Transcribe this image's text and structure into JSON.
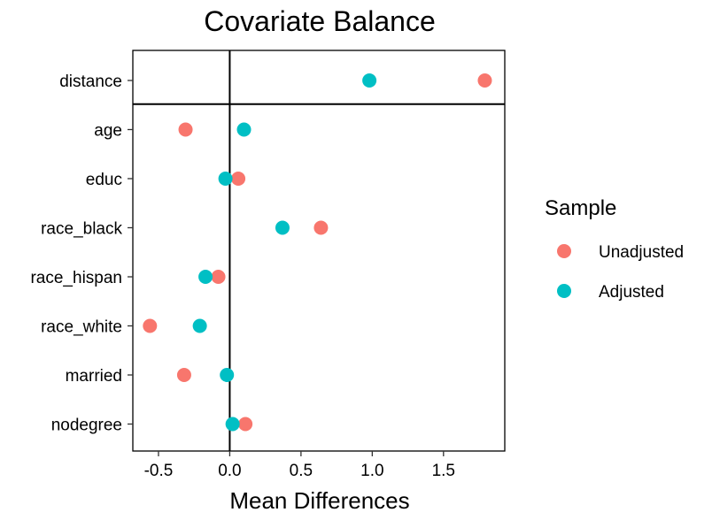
{
  "chart_data": {
    "type": "scatter",
    "title": "Covariate Balance",
    "xlabel": "Mean Differences",
    "ylabel": "",
    "xlim": [
      -0.68,
      1.93
    ],
    "x_ticks": [
      -0.5,
      0.0,
      0.5,
      1.0,
      1.5
    ],
    "x_tick_labels": [
      "-0.5",
      "0.0",
      "0.5",
      "1.0",
      "1.5"
    ],
    "reference_line_x": 0,
    "separator_after_category": "distance",
    "categories": [
      "distance",
      "age",
      "educ",
      "race_black",
      "race_hispan",
      "race_white",
      "married",
      "nodegree"
    ],
    "series": [
      {
        "name": "Unadjusted",
        "color": "#F8766D",
        "values": [
          1.79,
          -0.31,
          0.06,
          0.64,
          -0.08,
          -0.56,
          -0.32,
          0.11
        ]
      },
      {
        "name": "Adjusted",
        "color": "#00BFC4",
        "values": [
          0.98,
          0.1,
          -0.03,
          0.37,
          -0.17,
          -0.21,
          -0.02,
          0.02
        ]
      }
    ],
    "legend": {
      "title": "Sample",
      "position": "right"
    },
    "grid": false
  }
}
